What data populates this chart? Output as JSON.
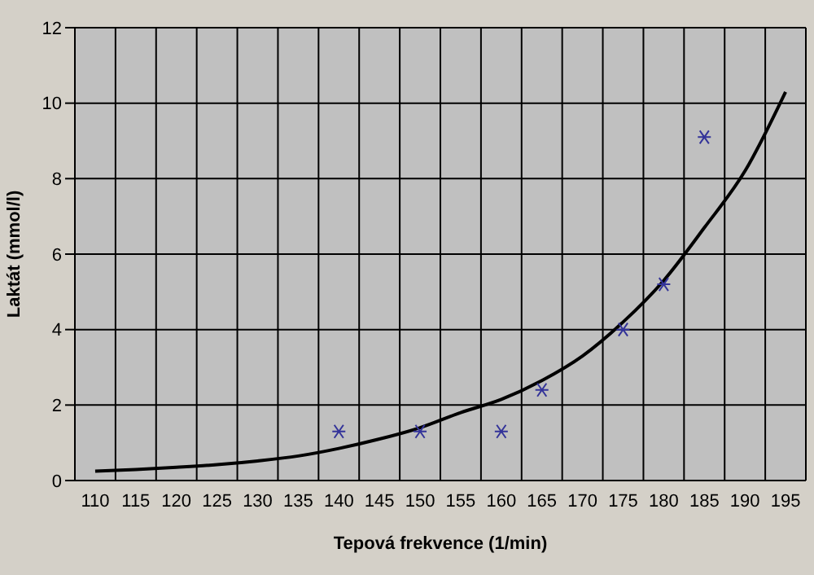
{
  "chart_data": {
    "type": "scatter",
    "xlabel": "Tepová frekvence (1/min)",
    "ylabel": "Laktát (mmol/l)",
    "categories": [
      "110",
      "115",
      "120",
      "125",
      "130",
      "135",
      "140",
      "145",
      "150",
      "155",
      "160",
      "165",
      "170",
      "175",
      "180",
      "185",
      "190",
      "195"
    ],
    "series": [
      {
        "type": "line",
        "color": "#000000",
        "marker": "none",
        "values": [
          0.25,
          0.29,
          0.35,
          0.42,
          0.52,
          0.65,
          0.85,
          1.1,
          1.4,
          1.8,
          2.15,
          2.65,
          3.3,
          4.2,
          5.3,
          6.7,
          8.2,
          10.3
        ]
      },
      {
        "color": "#333399",
        "values": [
          null,
          null,
          null,
          null,
          null,
          null,
          1.3,
          null,
          1.3,
          null,
          1.3,
          2.4,
          null,
          4.0,
          5.2,
          9.1,
          null,
          null
        ]
      }
    ],
    "marker": "cross",
    "ylim": [
      0,
      12
    ],
    "yticks": [
      0,
      2,
      4,
      6,
      8,
      10,
      12
    ],
    "grid": true
  }
}
